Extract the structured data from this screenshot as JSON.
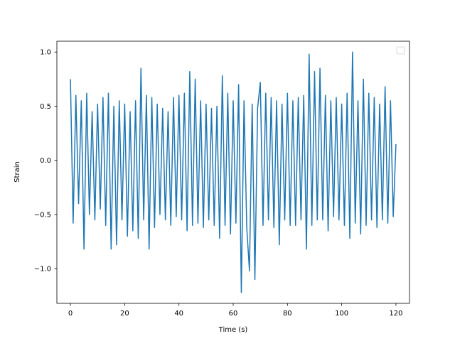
{
  "chart_data": {
    "type": "line",
    "title": "",
    "xlabel": "Time (s)",
    "ylabel": "Strain",
    "xlim": [
      -5,
      125
    ],
    "ylim": [
      -1.32,
      1.1
    ],
    "x_ticks": [
      0,
      20,
      40,
      60,
      80,
      100,
      120
    ],
    "x_tick_labels": [
      "0",
      "20",
      "40",
      "60",
      "80",
      "100",
      "120"
    ],
    "y_ticks": [
      -1.0,
      -0.5,
      0.0,
      0.5,
      1.0
    ],
    "y_tick_labels": [
      "−1.0",
      "−0.5",
      "0.0",
      "0.5",
      "1.0"
    ],
    "grid": false,
    "legend": {
      "location": "upper right",
      "entries": []
    },
    "series": [
      {
        "color": "#1f77b4",
        "x": [
          0,
          1,
          2,
          3,
          4,
          5,
          6,
          7,
          8,
          9,
          10,
          11,
          12,
          13,
          14,
          15,
          16,
          17,
          18,
          19,
          20,
          21,
          22,
          23,
          24,
          25,
          26,
          27,
          28,
          29,
          30,
          31,
          32,
          33,
          34,
          35,
          36,
          37,
          38,
          39,
          40,
          41,
          42,
          43,
          44,
          45,
          46,
          47,
          48,
          49,
          50,
          51,
          52,
          53,
          54,
          55,
          56,
          57,
          58,
          59,
          60,
          61,
          62,
          63,
          64,
          65,
          66,
          67,
          68,
          69,
          70,
          71,
          72,
          73,
          74,
          75,
          76,
          77,
          78,
          79,
          80,
          81,
          82,
          83,
          84,
          85,
          86,
          87,
          88,
          89,
          90,
          91,
          92,
          93,
          94,
          95,
          96,
          97,
          98,
          99,
          100,
          101,
          102,
          103,
          104,
          105,
          106,
          107,
          108,
          109,
          110,
          111,
          112,
          113,
          114,
          115,
          116,
          117,
          118,
          119,
          120
        ],
        "y": [
          0.75,
          -0.58,
          0.6,
          -0.4,
          0.55,
          -0.82,
          0.62,
          -0.5,
          0.45,
          -0.55,
          0.52,
          -0.45,
          0.58,
          -0.6,
          0.62,
          -0.82,
          0.5,
          -0.78,
          0.55,
          -0.55,
          0.52,
          -0.7,
          0.45,
          -0.65,
          0.55,
          -0.72,
          0.85,
          -0.55,
          0.6,
          -0.82,
          0.58,
          -0.62,
          0.52,
          -0.5,
          0.48,
          -0.55,
          0.45,
          -0.6,
          0.58,
          -0.52,
          0.6,
          -0.55,
          0.62,
          -0.65,
          0.82,
          -0.6,
          0.75,
          -0.58,
          0.55,
          -0.62,
          0.52,
          -0.55,
          0.48,
          -0.6,
          0.5,
          -0.72,
          0.78,
          -0.6,
          0.62,
          -0.68,
          0.55,
          -0.58,
          0.7,
          -1.22,
          0.55,
          -0.62,
          -1.02,
          0.52,
          -1.1,
          0.48,
          0.72,
          -0.6,
          0.62,
          -0.55,
          0.58,
          -0.62,
          0.55,
          -0.78,
          0.52,
          -0.55,
          0.62,
          -0.6,
          0.55,
          -0.6,
          0.58,
          -0.55,
          0.6,
          -0.82,
          0.98,
          -0.6,
          0.82,
          -0.55,
          0.85,
          -0.55,
          0.6,
          -0.65,
          0.55,
          -0.52,
          0.58,
          -0.55,
          0.52,
          -0.6,
          0.62,
          -0.72,
          1.0,
          -0.58,
          0.55,
          -0.68,
          0.75,
          -0.6,
          0.62,
          -0.55,
          0.58,
          -0.62,
          0.52,
          -0.55,
          0.68,
          -0.58,
          0.55,
          -0.52,
          0.15
        ]
      }
    ]
  }
}
